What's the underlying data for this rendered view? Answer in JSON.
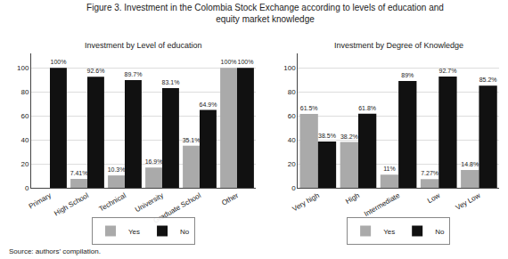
{
  "title": "Figure 3. Investment in the Colombia Stock Exchange according to levels of education and",
  "subtitle": "equity market knowledge",
  "annotations": [
    "Source: authors’ compilation."
  ],
  "chart_data": [
    {
      "type": "bar",
      "title": "Investment by Level of education",
      "categories": [
        "Primary",
        "High School",
        "Technical",
        "University",
        "Graduate School",
        "Other"
      ],
      "series": [
        {
          "name": "Yes",
          "color": "#aaaaaa",
          "values": [
            0,
            7.41,
            10.3,
            16.9,
            35.1,
            100
          ],
          "value_labels": [
            null,
            "7.41%",
            "10.3%",
            "16.9%",
            "35.1%",
            "100%"
          ]
        },
        {
          "name": "No",
          "color": "#111111",
          "values": [
            100,
            92.6,
            89.7,
            83.1,
            64.9,
            100
          ],
          "value_labels": [
            "100%",
            "92.6%",
            "89.7%",
            "83.1%",
            "64.9%",
            "100%"
          ]
        }
      ],
      "ylim": [
        0,
        112
      ],
      "yticks": [
        0,
        20,
        40,
        60,
        80,
        100
      ],
      "grid": true,
      "legend": "bottom",
      "data_labels": true
    },
    {
      "type": "bar",
      "title": "Investment by Degree of Knowledge",
      "categories": [
        "Very high",
        "High",
        "Intermediate",
        "Low",
        "Vey Low"
      ],
      "series": [
        {
          "name": "Yes",
          "color": "#aaaaaa",
          "values": [
            61.5,
            38.2,
            11,
            7.27,
            14.8
          ],
          "value_labels": [
            "61.5%",
            "38.2%",
            "11%",
            "7.27%",
            "14.8%"
          ]
        },
        {
          "name": "No",
          "color": "#111111",
          "values": [
            38.5,
            61.8,
            89,
            92.7,
            85.2
          ],
          "value_labels": [
            "38.5%",
            "61.8%",
            "89%",
            "92.7%",
            "85.2%"
          ]
        }
      ],
      "ylim": [
        0,
        112
      ],
      "yticks": [
        0,
        20,
        40,
        60,
        80,
        100
      ],
      "grid": true,
      "legend": "bottom",
      "data_labels": true
    }
  ]
}
